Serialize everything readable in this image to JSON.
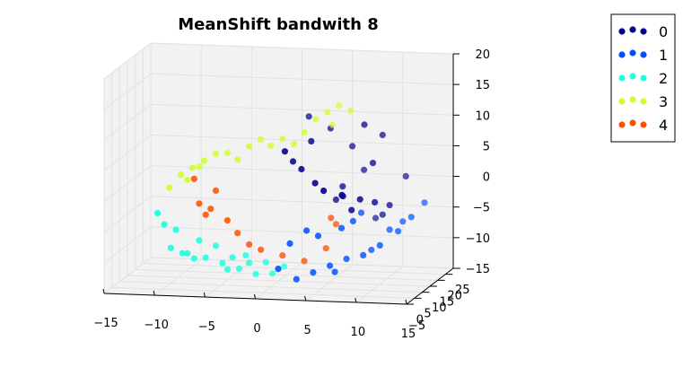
{
  "chart_data": {
    "type": "scatter",
    "projection": "3d",
    "title": "MeanShift bandwith 8",
    "xlabel": "",
    "ylabel": "",
    "zlabel": "",
    "xlim": [
      -15,
      15
    ],
    "ylim": [
      -5,
      25
    ],
    "zlim": [
      -15,
      20
    ],
    "x_ticks": [
      "−15",
      "−10",
      "−5",
      "0",
      "5",
      "10",
      "15"
    ],
    "y_ticks": [
      "−5",
      "0",
      "5",
      "10",
      "15",
      "20",
      "25"
    ],
    "z_ticks": [
      "−15",
      "−10",
      "−5",
      "0",
      "5",
      "10",
      "15",
      "20"
    ],
    "grid": true,
    "legend": {
      "position": "top-right"
    },
    "colors": [
      "#00008f",
      "#0050ff",
      "#20ffdf",
      "#cfff30",
      "#ff5000"
    ],
    "series": [
      {
        "name": "0",
        "color": "#00008f",
        "points": [
          [
            2,
            1,
            8
          ],
          [
            2.5,
            3,
            6
          ],
          [
            3.5,
            2,
            5
          ],
          [
            5,
            1,
            3
          ],
          [
            6,
            0,
            2
          ],
          [
            7.5,
            2,
            1
          ],
          [
            9,
            4,
            0
          ],
          [
            10,
            7,
            -1
          ],
          [
            11,
            10,
            -2
          ],
          [
            10,
            12,
            -4
          ],
          [
            9,
            14,
            -5
          ],
          [
            8,
            13,
            3
          ],
          [
            7,
            12,
            7
          ],
          [
            5,
            11,
            10
          ],
          [
            3,
            10,
            12
          ],
          [
            6.5,
            9,
            1
          ],
          [
            7,
            6,
            0
          ],
          [
            8,
            5,
            -2
          ],
          [
            9.5,
            9,
            5
          ],
          [
            10,
            12,
            9
          ],
          [
            12,
            14,
            2
          ],
          [
            4,
            5,
            9
          ],
          [
            8.5,
            10,
            11
          ],
          [
            6,
            8,
            -1
          ]
        ]
      },
      {
        "name": "1",
        "color": "#0050ff",
        "points": [
          [
            3,
            2,
            -13
          ],
          [
            4.5,
            3,
            -12
          ],
          [
            6,
            4,
            -11
          ],
          [
            7.5,
            5,
            -10
          ],
          [
            9,
            6,
            -9.5
          ],
          [
            10.5,
            7,
            -8
          ],
          [
            12,
            9,
            -6
          ],
          [
            13,
            11,
            -4
          ],
          [
            14,
            13,
            -2
          ],
          [
            11,
            10,
            -6
          ],
          [
            5,
            3,
            -6
          ],
          [
            7,
            5,
            -5
          ],
          [
            8.5,
            8,
            -3
          ],
          [
            4,
            2,
            -5
          ],
          [
            2.5,
            1,
            -7
          ],
          [
            1.5,
            0,
            -11
          ],
          [
            6.5,
            4,
            -12
          ],
          [
            9.5,
            8,
            -9
          ],
          [
            12,
            12,
            -5
          ],
          [
            8,
            6,
            -4
          ]
        ]
      },
      {
        "name": "2",
        "color": "#20ffdf",
        "points": [
          [
            -10,
            -3,
            -2
          ],
          [
            -9.5,
            -2,
            -4
          ],
          [
            -9,
            -1,
            -8
          ],
          [
            -8,
            0,
            -9
          ],
          [
            -7,
            1,
            -10
          ],
          [
            -6,
            2,
            -10
          ],
          [
            -4.5,
            3,
            -11
          ],
          [
            -3,
            4,
            -12
          ],
          [
            -1.5,
            5,
            -13
          ],
          [
            0,
            6,
            -13
          ],
          [
            1,
            7,
            -12
          ],
          [
            -5,
            2,
            -8
          ],
          [
            -3.5,
            3,
            -10
          ],
          [
            -2,
            4,
            -11
          ],
          [
            -6.5,
            1,
            -7
          ],
          [
            -8.5,
            -1,
            -5
          ],
          [
            -7.5,
            0,
            -9
          ],
          [
            -0.5,
            5,
            -11
          ],
          [
            -4,
            3,
            -12
          ],
          [
            -2.5,
            5,
            -10
          ]
        ]
      },
      {
        "name": "3",
        "color": "#cfff30",
        "points": [
          [
            -9,
            -2,
            2
          ],
          [
            -8,
            -1,
            4
          ],
          [
            -7,
            0,
            5
          ],
          [
            -6,
            1,
            6
          ],
          [
            -5,
            2,
            7
          ],
          [
            -4,
            3,
            7
          ],
          [
            -2,
            4,
            8
          ],
          [
            0,
            5,
            8
          ],
          [
            1,
            6,
            9
          ],
          [
            2,
            7,
            8
          ],
          [
            4,
            8,
            12
          ],
          [
            5,
            9,
            13
          ],
          [
            6,
            10,
            14
          ],
          [
            7,
            11,
            13
          ],
          [
            -7.5,
            0,
            3
          ],
          [
            -6.5,
            1,
            5
          ],
          [
            -3,
            3,
            6
          ],
          [
            -1,
            5,
            9
          ],
          [
            3,
            7,
            10
          ],
          [
            5.5,
            9,
            11
          ]
        ]
      },
      {
        "name": "4",
        "color": "#ff5000",
        "points": [
          [
            -7,
            1,
            3
          ],
          [
            -6.5,
            1,
            -1
          ],
          [
            -5.5,
            2,
            -2
          ],
          [
            -4,
            3,
            -4
          ],
          [
            -3,
            3,
            -6
          ],
          [
            -2,
            4,
            -8
          ],
          [
            -1,
            5,
            -9
          ],
          [
            1,
            6,
            -10
          ],
          [
            3,
            7,
            -11
          ],
          [
            5,
            8,
            -9
          ],
          [
            5.5,
            8,
            -4
          ],
          [
            6,
            8,
            -5
          ],
          [
            -5,
            2,
            1
          ],
          [
            -6,
            2,
            -3
          ]
        ]
      }
    ]
  }
}
